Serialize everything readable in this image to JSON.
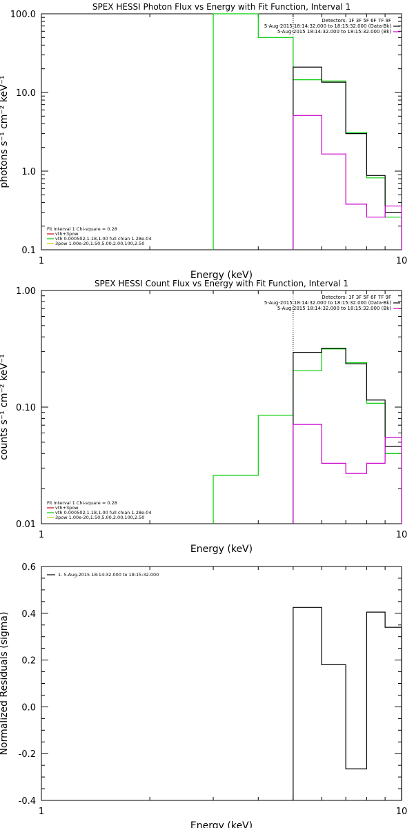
{
  "chart_data": [
    {
      "type": "line",
      "title": "SPEX HESSI Photon Flux vs Energy with Fit Function, Interval 1",
      "xlabel": "Energy (keV)",
      "ylabel": "photons s⁻¹ cm⁻² keV⁻¹",
      "xscale": "log",
      "yscale": "log",
      "xlim": [
        1,
        10
      ],
      "ylim": [
        0.1,
        100
      ],
      "xticks": [
        "1",
        "10"
      ],
      "yticks": [
        {
          "v": 0.1,
          "label": "0.1"
        },
        {
          "v": 1,
          "label": "1.0"
        },
        {
          "v": 10,
          "label": "10.0"
        },
        {
          "v": 100,
          "label": "100.0"
        }
      ],
      "vline": 5.0,
      "header": [
        {
          "text": "Detectors: 1F 3F 5F 6F 7F 9F",
          "line": "none"
        },
        {
          "text": "5-Aug-2015 18:14:32.000 to 18:15:32.000 (Data-Bk)",
          "line": "#000000"
        },
        {
          "text": "5-Aug-2015 18:14:32.000 to 18:15:32.000 (Bk)",
          "line": "#cc00cc"
        }
      ],
      "legend": [
        {
          "text": "Fit Interval  1    Chi-square = 0.28",
          "color": "none"
        },
        {
          "text": "vth+3pow",
          "color": "#cc0000"
        },
        {
          "text": "vth 0.000502,1.18,1.00   full chian 1.28e-04",
          "color": "#00cc00"
        },
        {
          "text": "3pow 1.00e-20,1.50,5.00,2.00,100,2.50",
          "color": "#cccc00"
        }
      ],
      "series": [
        {
          "color": "#00cc00",
          "edges": [
            3.0,
            4.0,
            5.0,
            6.0,
            7.0,
            8.0,
            9.0,
            10.0
          ],
          "values": [
            120,
            50,
            14.5,
            14,
            3.1,
            0.82,
            0.26
          ],
          "close": true
        },
        {
          "color": "#000000",
          "edges": [
            5.0,
            6.0,
            7.0,
            8.0,
            9.0,
            10.0
          ],
          "values": [
            21,
            13.5,
            3.0,
            0.88,
            0.3
          ],
          "close": false
        },
        {
          "color": "#cc00cc",
          "edges": [
            5.0,
            6.0,
            7.0,
            8.0,
            9.0,
            10.0
          ],
          "values": [
            5.1,
            1.65,
            0.38,
            0.26,
            0.36
          ],
          "close": true
        }
      ]
    },
    {
      "type": "line",
      "title": "SPEX HESSI Count Flux vs Energy with Fit Function, Interval 1",
      "xlabel": "Energy (keV)",
      "ylabel": "counts s⁻¹ cm⁻² keV⁻¹",
      "xscale": "log",
      "yscale": "log",
      "xlim": [
        1,
        10
      ],
      "ylim": [
        0.01,
        1.0
      ],
      "xticks": [
        "1",
        "10"
      ],
      "yticks": [
        {
          "v": 0.01,
          "label": "0.01"
        },
        {
          "v": 0.1,
          "label": "0.10"
        },
        {
          "v": 1.0,
          "label": "1.00"
        }
      ],
      "vline": 5.0,
      "header": [
        {
          "text": "Detectors: 1F 3F 5F 6F 7F 9F",
          "line": "none"
        },
        {
          "text": "5-Aug-2015 18:14:32.000 to 18:15:32.000 (Data-Bk)",
          "line": "#000000"
        },
        {
          "text": "5-Aug-2015 18:14:32.000 to 18:15:32.000 (Bk)",
          "line": "#cc00cc"
        }
      ],
      "legend": [
        {
          "text": "Fit Interval  1    Chi-square = 0.28",
          "color": "none"
        },
        {
          "text": "vth+3pow",
          "color": "#cc0000"
        },
        {
          "text": "vth 0.000502,1.18,1.00   full chian 1.28e-04",
          "color": "#00cc00"
        },
        {
          "text": "3pow 1.00e-20,1.50,5.00,2.00,100,2.50",
          "color": "#cccc00"
        }
      ],
      "series": [
        {
          "color": "#00cc00",
          "edges": [
            3.0,
            4.0,
            5.0,
            6.0,
            7.0,
            8.0,
            9.0,
            10.0
          ],
          "values": [
            0.026,
            0.085,
            0.205,
            0.315,
            0.24,
            0.108,
            0.04
          ],
          "close": true
        },
        {
          "color": "#000000",
          "edges": [
            5.0,
            6.0,
            7.0,
            8.0,
            9.0,
            10.0
          ],
          "values": [
            0.295,
            0.32,
            0.235,
            0.115,
            0.046
          ],
          "close": false
        },
        {
          "color": "#cc00cc",
          "edges": [
            5.0,
            6.0,
            7.0,
            8.0,
            9.0,
            10.0
          ],
          "values": [
            0.071,
            0.033,
            0.027,
            0.033,
            0.055
          ],
          "close": true
        }
      ]
    },
    {
      "type": "line",
      "title": "",
      "xlabel": "Energy (keV)",
      "ylabel": "Normalized Residuals (sigma)",
      "xscale": "log",
      "yscale": "linear",
      "xlim": [
        1,
        10
      ],
      "ylim": [
        -0.4,
        0.6
      ],
      "xticks": [
        "1",
        "10"
      ],
      "yticks": [
        {
          "v": -0.4,
          "label": "-0.4"
        },
        {
          "v": -0.2,
          "label": "-0.2"
        },
        {
          "v": 0.0,
          "label": "0.0"
        },
        {
          "v": 0.2,
          "label": "0.2"
        },
        {
          "v": 0.4,
          "label": "0.4"
        },
        {
          "v": 0.6,
          "label": "0.6"
        }
      ],
      "header": [],
      "legend": [
        {
          "text": "1.  5-Aug-2015 18:14:32.000 to 18:15:32.000",
          "color": "#000000"
        }
      ],
      "series": [
        {
          "color": "#000000",
          "edges": [
            5.0,
            6.0,
            7.0,
            8.0,
            9.0,
            10.0
          ],
          "values": [
            0.425,
            0.18,
            -0.265,
            0.405,
            0.34
          ],
          "close": true,
          "openLeft": true
        }
      ]
    }
  ]
}
